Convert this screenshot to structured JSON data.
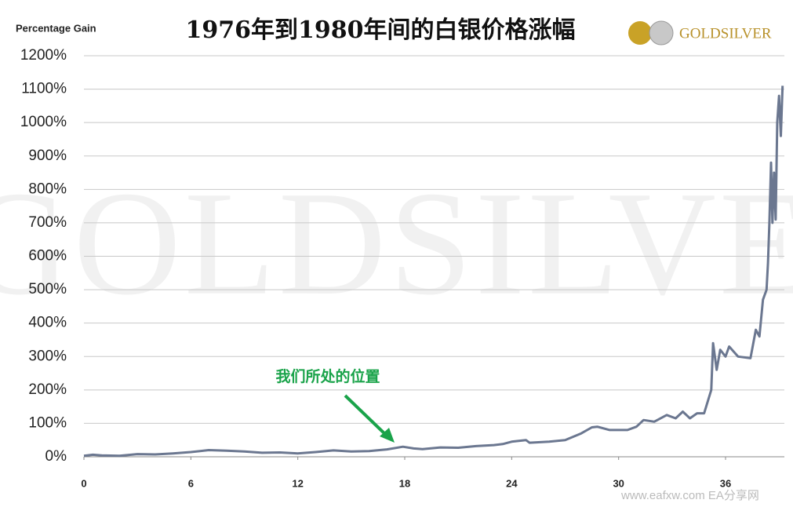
{
  "chart_data": {
    "type": "line",
    "title": "1976年到1980年间的白银价格涨幅",
    "y_axis_label": "Percentage Gain",
    "logo": "GOLDSILVER",
    "watermark": "GOLDSILVER",
    "site_watermark": "www.eafxw.com  EA分享网",
    "annotation": "我们所处的位置",
    "x": [
      0,
      0.5,
      1,
      2,
      3,
      4,
      5,
      6,
      7,
      8,
      9,
      10,
      11,
      12,
      13,
      14,
      15,
      16,
      17,
      17.9,
      18.5,
      19,
      20,
      21,
      22,
      23,
      23.5,
      24,
      24.8,
      25,
      26.1,
      27,
      27.9,
      28.5,
      28.8,
      29.5,
      30.5,
      31,
      31.4,
      32,
      32.7,
      33.2,
      33.6,
      34,
      34.4,
      34.8,
      35.2,
      35.3,
      35.5,
      35.7,
      36,
      36.2,
      36.7,
      37.4,
      37.7,
      37.9,
      38.1,
      38.3,
      38.38,
      38.46,
      38.55,
      38.63,
      38.72,
      38.81,
      38.9,
      39,
      39.1,
      39.2
    ],
    "series": [
      {
        "name": "Silver",
        "color": "#6b7790",
        "values": [
          3,
          6,
          4,
          3,
          8,
          7,
          10,
          14,
          20,
          18,
          16,
          12,
          13,
          10,
          14,
          19,
          16,
          17,
          22,
          30,
          25,
          23,
          28,
          27,
          32,
          35,
          38,
          45,
          50,
          42,
          45,
          50,
          70,
          88,
          90,
          80,
          80,
          90,
          110,
          105,
          125,
          115,
          135,
          115,
          130,
          130,
          200,
          340,
          260,
          320,
          300,
          330,
          300,
          295,
          380,
          360,
          470,
          500,
          580,
          700,
          880,
          700,
          850,
          710,
          1000,
          1080,
          960,
          1110
        ]
      }
    ],
    "xlim": [
      0,
      39.3
    ],
    "ylim": [
      0,
      1200
    ],
    "xticks": [
      0,
      6,
      12,
      18,
      24,
      30,
      36
    ],
    "yticks": [
      {
        "value": 0,
        "label": "0%"
      },
      {
        "value": 100,
        "label": "100%"
      },
      {
        "value": 200,
        "label": "200%"
      },
      {
        "value": 300,
        "label": "300%"
      },
      {
        "value": 400,
        "label": "400%"
      },
      {
        "value": 500,
        "label": "500%"
      },
      {
        "value": 600,
        "label": "600%"
      },
      {
        "value": 700,
        "label": "700%"
      },
      {
        "value": 800,
        "label": "800%"
      },
      {
        "value": 900,
        "label": "900%"
      },
      {
        "value": 1000,
        "label": "1000%"
      },
      {
        "value": 1100,
        "label": "1100%"
      },
      {
        "value": 1200,
        "label": "1200%"
      }
    ],
    "grid": true
  }
}
